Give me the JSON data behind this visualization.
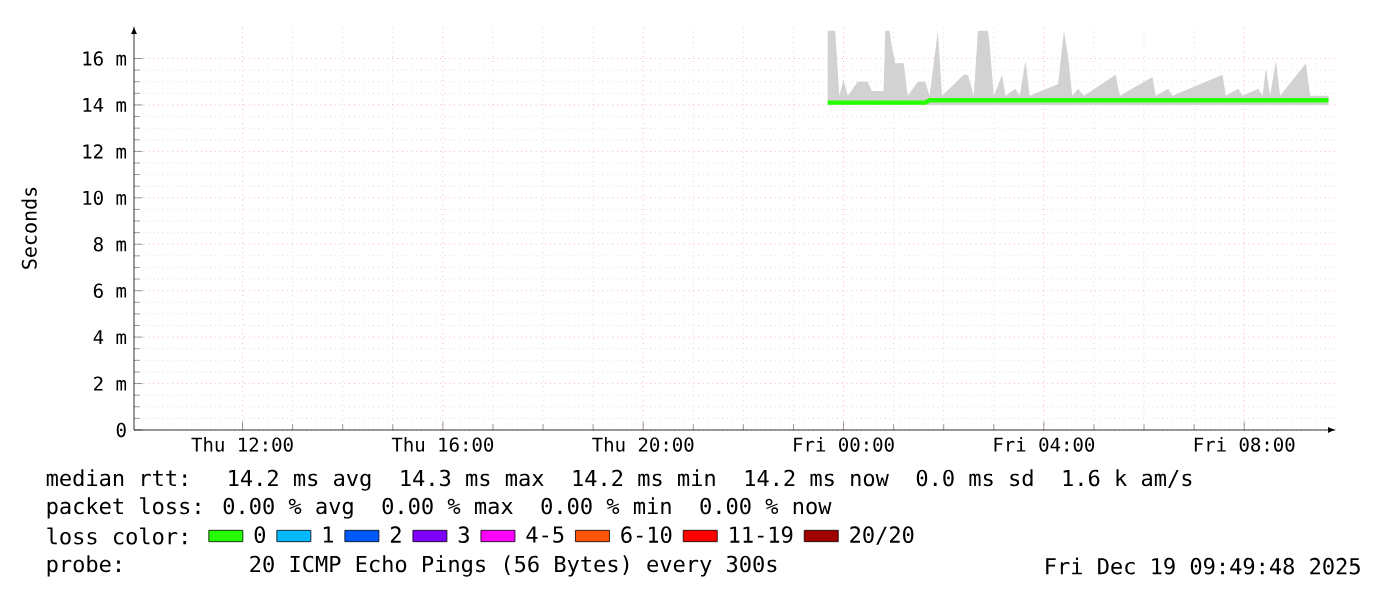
{
  "chart_data": {
    "type": "line",
    "ylabel": "Seconds",
    "legend_title": "loss color:",
    "legend": "bottom",
    "grid": true,
    "xlim": [
      "2025-12-18T09:50",
      "2025-12-19T09:50"
    ],
    "xticks": [
      {
        "value": "2025-12-18T12:00",
        "label": "Thu 12:00"
      },
      {
        "value": "2025-12-18T16:00",
        "label": "Thu 16:00"
      },
      {
        "value": "2025-12-18T20:00",
        "label": "Thu 20:00"
      },
      {
        "value": "2025-12-19T00:00",
        "label": "Fri 00:00"
      },
      {
        "value": "2025-12-19T04:00",
        "label": "Fri 04:00"
      },
      {
        "value": "2025-12-19T08:00",
        "label": "Fri 08:00"
      }
    ],
    "ylim": [
      0,
      17.4
    ],
    "yticks": [
      0,
      {
        "value": 2,
        "label": "2 m"
      },
      {
        "value": 4,
        "label": "4 m"
      },
      {
        "value": 6,
        "label": "6 m"
      },
      {
        "value": 8,
        "label": "8 m"
      },
      {
        "value": 10,
        "label": "10 m"
      },
      {
        "value": 12,
        "label": "12 m"
      },
      {
        "value": 14,
        "label": "14 m"
      },
      {
        "value": 16,
        "label": "16 m"
      }
    ],
    "series": [
      {
        "name": "0",
        "color": "#26ff00",
        "x": [
          "2025-12-18T23:41",
          "2025-12-18T23:50",
          "2025-12-18T23:55",
          "2025-12-19T00:00",
          "2025-12-19T00:05",
          "2025-12-19T00:17",
          "2025-12-19T00:29",
          "2025-12-19T00:34",
          "2025-12-19T00:48",
          "2025-12-19T00:50",
          "2025-12-19T00:55",
          "2025-12-19T00:58",
          "2025-12-19T01:02",
          "2025-12-19T01:12",
          "2025-12-19T01:17",
          "2025-12-19T01:29",
          "2025-12-19T01:38",
          "2025-12-19T01:43",
          "2025-12-19T01:53",
          "2025-12-19T01:58",
          "2025-12-19T02:24",
          "2025-12-19T02:29",
          "2025-12-19T02:36",
          "2025-12-19T02:41",
          "2025-12-19T02:53",
          "2025-12-19T02:55",
          "2025-12-19T03:00",
          "2025-12-19T03:10",
          "2025-12-19T03:14",
          "2025-12-19T03:26",
          "2025-12-19T03:31",
          "2025-12-19T03:38",
          "2025-12-19T03:43",
          "2025-12-19T04:17",
          "2025-12-19T04:24",
          "2025-12-19T04:29",
          "2025-12-19T04:34",
          "2025-12-19T04:41",
          "2025-12-19T04:48",
          "2025-12-19T05:26",
          "2025-12-19T05:31",
          "2025-12-19T06:10",
          "2025-12-19T06:14",
          "2025-12-19T06:29",
          "2025-12-19T06:34",
          "2025-12-19T07:34",
          "2025-12-19T07:38",
          "2025-12-19T07:53",
          "2025-12-19T07:58",
          "2025-12-19T08:17",
          "2025-12-19T08:22",
          "2025-12-19T08:26",
          "2025-12-19T08:31",
          "2025-12-19T08:38",
          "2025-12-19T08:43",
          "2025-12-19T09:14",
          "2025-12-19T09:19",
          "2025-12-19T09:41"
        ],
        "values": [
          14.1,
          14.1,
          14.1,
          14.1,
          14.1,
          14.1,
          14.1,
          14.1,
          14.1,
          14.1,
          14.1,
          14.1,
          14.1,
          14.1,
          14.1,
          14.1,
          14.1,
          14.2,
          14.2,
          14.2,
          14.2,
          14.2,
          14.2,
          14.2,
          14.2,
          14.2,
          14.2,
          14.2,
          14.2,
          14.2,
          14.2,
          14.2,
          14.2,
          14.2,
          14.2,
          14.2,
          14.2,
          14.2,
          14.2,
          14.2,
          14.2,
          14.2,
          14.2,
          14.2,
          14.2,
          14.2,
          14.2,
          14.2,
          14.2,
          14.2,
          14.2,
          14.2,
          14.2,
          14.2,
          14.2,
          14.2,
          14.2,
          14.2
        ],
        "lower": [
          14.0,
          14.0,
          14.0,
          14.0,
          14.0,
          14.0,
          14.0,
          14.0,
          14.0,
          14.0,
          14.0,
          14.0,
          14.0,
          14.0,
          14.0,
          14.0,
          14.0,
          14.0,
          14.0,
          14.0,
          14.0,
          14.0,
          14.0,
          14.0,
          14.0,
          14.0,
          14.0,
          14.0,
          14.0,
          14.0,
          14.0,
          14.0,
          14.0,
          14.0,
          14.0,
          14.0,
          14.0,
          14.0,
          14.0,
          14.0,
          14.0,
          14.0,
          14.0,
          14.0,
          14.0,
          14.0,
          14.0,
          14.0,
          14.0,
          14.0,
          14.0,
          14.0,
          14.0,
          14.0,
          14.0,
          14.0,
          14.0,
          14.0
        ],
        "upper": [
          17.2,
          17.2,
          14.4,
          15.1,
          14.4,
          15.0,
          15.0,
          14.6,
          14.6,
          17.2,
          17.2,
          16.5,
          15.8,
          15.8,
          14.4,
          15.0,
          15.0,
          14.4,
          17.2,
          14.4,
          15.3,
          15.3,
          14.4,
          17.2,
          17.2,
          16.6,
          14.4,
          15.3,
          14.4,
          14.7,
          14.4,
          15.9,
          14.4,
          14.9,
          17.2,
          16.1,
          14.4,
          14.7,
          14.4,
          15.3,
          14.4,
          15.2,
          14.4,
          14.7,
          14.4,
          15.3,
          14.4,
          14.7,
          14.4,
          14.7,
          14.4,
          15.6,
          14.4,
          15.9,
          14.4,
          15.8,
          14.4,
          14.4
        ]
      },
      {
        "name": "1",
        "color": "#00b8ff"
      },
      {
        "name": "2",
        "color": "#0059ff"
      },
      {
        "name": "3",
        "color": "#7e00ff"
      },
      {
        "name": "4-5",
        "color": "#ff00ff"
      },
      {
        "name": "6-10",
        "color": "#ff5500"
      },
      {
        "name": "11-19",
        "color": "#ff0000"
      },
      {
        "name": "20/20",
        "color": "#a10000"
      }
    ],
    "annotations": [
      "median rtt:  14.2 ms avg  14.3 ms max  14.2 ms min  14.2 ms now  0.0 ms sd  1.6 k am/s",
      "packet loss: 0.00 % avg  0.00 % max  0.00 % min  0.00 % now",
      "probe:       20 ICMP Echo Pings (56 Bytes) every 300s",
      "Fri Dec 19 09:49:48 2025"
    ]
  }
}
